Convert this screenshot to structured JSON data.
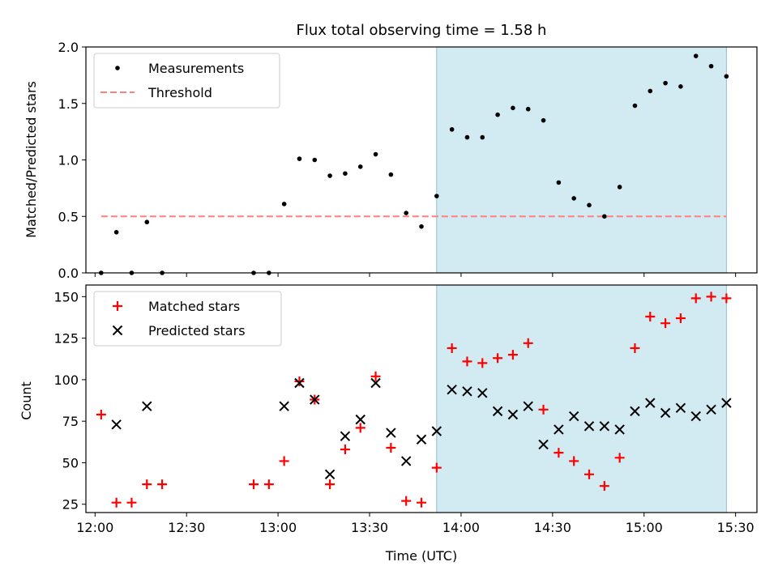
{
  "title": "Flux total observing time = 1.58 h",
  "colors": {
    "shade": "#add8e6",
    "threshold": "#ff7f7f",
    "matched": "#ff0000",
    "predicted": "#000000",
    "measurement": "#000000"
  },
  "chart_data": [
    {
      "type": "scatter",
      "ylabel": "Matched/Predicted stars",
      "xlabel": "",
      "xlim": [
        "11:57",
        "15:37"
      ],
      "ylim": [
        0,
        2.0
      ],
      "xticks": [
        "12:00",
        "12:30",
        "13:00",
        "13:30",
        "14:00",
        "14:30",
        "15:00",
        "15:30"
      ],
      "xtick_labels_shown": false,
      "yticks": [
        0.0,
        0.5,
        1.0,
        1.5,
        2.0
      ],
      "ytick_labels": [
        "0.0",
        "0.5",
        "1.0",
        "1.5",
        "2.0"
      ],
      "shaded_region": [
        "13:52",
        "15:27"
      ],
      "threshold": {
        "y": 0.5,
        "x_range": [
          "12:02",
          "15:27"
        ]
      },
      "legend": {
        "placement": "top-left",
        "entries": [
          "Measurements",
          "Threshold"
        ]
      },
      "series": [
        {
          "name": "Measurements",
          "x": [
            "12:02",
            "12:07",
            "12:12",
            "12:17",
            "12:22",
            "12:52",
            "12:57",
            "13:02",
            "13:07",
            "13:12",
            "13:17",
            "13:22",
            "13:27",
            "13:32",
            "13:37",
            "13:42",
            "13:47",
            "13:52",
            "13:57",
            "14:02",
            "14:07",
            "14:12",
            "14:17",
            "14:22",
            "14:27",
            "14:32",
            "14:37",
            "14:42",
            "14:47",
            "14:52",
            "14:57",
            "15:02",
            "15:07",
            "15:12",
            "15:17",
            "15:22",
            "15:27"
          ],
          "y": [
            0.0,
            0.36,
            0.0,
            0.45,
            0.0,
            0.0,
            0.0,
            0.61,
            1.01,
            1.0,
            0.86,
            0.88,
            0.94,
            1.05,
            0.87,
            0.53,
            0.41,
            0.68,
            1.27,
            1.2,
            1.2,
            1.4,
            1.46,
            1.45,
            1.35,
            0.8,
            0.66,
            0.6,
            0.5,
            0.76,
            1.48,
            1.61,
            1.68,
            1.65,
            1.92,
            1.83,
            1.74
          ]
        }
      ]
    },
    {
      "type": "scatter",
      "ylabel": "Count",
      "xlabel": "Time (UTC)",
      "xlim": [
        "11:57",
        "15:37"
      ],
      "ylim": [
        20,
        157
      ],
      "xticks": [
        "12:00",
        "12:30",
        "13:00",
        "13:30",
        "14:00",
        "14:30",
        "15:00",
        "15:30"
      ],
      "yticks": [
        25,
        50,
        75,
        100,
        125,
        150
      ],
      "shaded_region": [
        "13:52",
        "15:27"
      ],
      "legend": {
        "placement": "top-left",
        "entries": [
          "Matched stars",
          "Predicted stars"
        ]
      },
      "series": [
        {
          "name": "Matched stars",
          "marker": "+",
          "x": [
            "12:02",
            "12:07",
            "12:12",
            "12:17",
            "12:22",
            "12:52",
            "12:57",
            "13:02",
            "13:07",
            "13:12",
            "13:17",
            "13:22",
            "13:27",
            "13:32",
            "13:37",
            "13:42",
            "13:47",
            "13:52",
            "13:57",
            "14:02",
            "14:07",
            "14:12",
            "14:17",
            "14:22",
            "14:27",
            "14:32",
            "14:37",
            "14:42",
            "14:47",
            "14:52",
            "14:57",
            "15:02",
            "15:07",
            "15:12",
            "15:17",
            "15:22",
            "15:27"
          ],
          "y": [
            79,
            26,
            26,
            37,
            37,
            37,
            37,
            51,
            99,
            88,
            37,
            58,
            71,
            102,
            59,
            27,
            26,
            47,
            119,
            111,
            110,
            113,
            115,
            122,
            82,
            56,
            51,
            43,
            36,
            53,
            119,
            138,
            134,
            137,
            149,
            150,
            149
          ]
        },
        {
          "name": "Predicted stars",
          "marker": "x",
          "x": [
            "12:07",
            "12:17",
            "13:02",
            "13:07",
            "13:12",
            "13:17",
            "13:22",
            "13:27",
            "13:32",
            "13:37",
            "13:42",
            "13:47",
            "13:52",
            "13:57",
            "14:02",
            "14:07",
            "14:12",
            "14:17",
            "14:22",
            "14:27",
            "14:32",
            "14:37",
            "14:42",
            "14:47",
            "14:52",
            "14:57",
            "15:02",
            "15:07",
            "15:12",
            "15:17",
            "15:22",
            "15:27"
          ],
          "y": [
            73,
            84,
            84,
            98,
            88,
            43,
            66,
            76,
            98,
            68,
            51,
            64,
            69,
            94,
            93,
            92,
            81,
            79,
            84,
            61,
            70,
            78,
            72,
            72,
            70,
            81,
            86,
            80,
            83,
            78,
            82,
            86
          ]
        }
      ]
    }
  ]
}
